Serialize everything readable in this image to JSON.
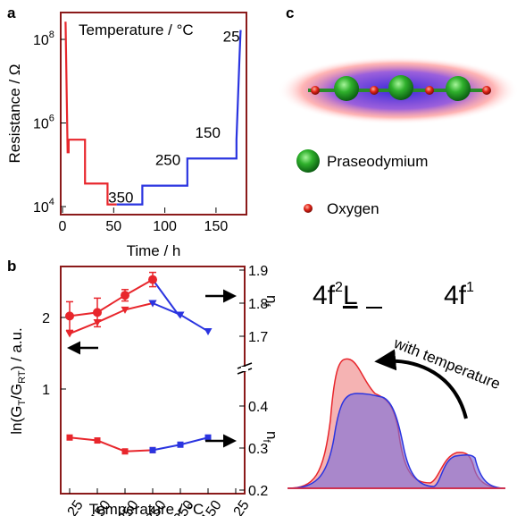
{
  "panel_labels": {
    "a": "a",
    "b": "b",
    "c": "c"
  },
  "colors": {
    "red": "#e8262c",
    "blue": "#2a34e0",
    "black": "#000000",
    "frame_red": "#8b1a1a"
  },
  "chart_data": [
    {
      "id": "a",
      "type": "line",
      "title": "",
      "xlabel": "Time / h",
      "ylabel": "Resistance / Ω",
      "annotation_header": "Temperature / °C",
      "xlim": [
        0,
        178
      ],
      "ylim_log10": [
        3.85,
        8.6
      ],
      "y_scale": "log",
      "xticks": [
        "0",
        "50",
        "100",
        "150"
      ],
      "xtick_values": [
        0,
        50,
        100,
        150
      ],
      "yticks": [
        "10",
        "10",
        "10",
        "10"
      ],
      "ytick_exponents": [
        "4",
        "6",
        "8",
        ""
      ],
      "ytick_values": [
        4,
        6,
        8
      ],
      "step_labels": [
        "350",
        "250",
        "150",
        "25"
      ],
      "step_label_positions": [
        [
          57,
          4.1
        ],
        [
          103,
          5.0
        ],
        [
          142,
          5.65
        ],
        [
          165,
          7.95
        ]
      ],
      "series": [
        {
          "name": "",
          "color": "red",
          "x": [
            2,
            3,
            5,
            6,
            6,
            22,
            22,
            44,
            44,
            53
          ],
          "y": [
            8.4,
            8.4,
            5.3,
            5.3,
            5.6,
            5.6,
            4.55,
            4.55,
            4.05,
            4.05
          ]
        },
        {
          "name": "",
          "color": "blue",
          "x": [
            53,
            78,
            78,
            122,
            122,
            170,
            170,
            173,
            174,
            175
          ],
          "y": [
            4.05,
            4.05,
            4.5,
            4.5,
            5.15,
            5.15,
            5.6,
            7.6,
            8.2,
            8.2
          ]
        }
      ]
    },
    {
      "id": "b",
      "type": "line",
      "title": "",
      "xlabel": "Temperature / °C",
      "ylabel": "ln(GT/GRT) / a.u.",
      "ylabel_parts": {
        "pre": "ln(G",
        "sub1": "T",
        "mid": "/G",
        "sub2": "RT",
        "post": ") / a.u."
      },
      "categories": [
        "25",
        "150",
        "250",
        "350",
        "250",
        "150",
        "25"
      ],
      "left_yticks": [
        "1",
        "2"
      ],
      "left_ylim": [
        0.25,
        2.75
      ],
      "right_yticks_upper": [
        "1.9",
        "1.8",
        "1.7"
      ],
      "right_yticks_lower": [
        "0.4",
        "0.3",
        "0.2"
      ],
      "right_label_upper": "n",
      "right_label_upper_sub": "f",
      "right_label_lower": "n",
      "right_label_lower_sub": "f",
      "series": [
        {
          "name": "",
          "axis": "left",
          "marker": "circle",
          "errorbars": true,
          "heating": [
            2.02,
            2.07,
            2.31,
            2.53
          ],
          "cooling": [
            2.53,
            2.0
          ],
          "errors": [
            0.2,
            0.2,
            0.08,
            0.1,
            0.2
          ]
        },
        {
          "name": "",
          "axis": "right_upper",
          "marker": "triangle",
          "heating": [
            1.708,
            1.742,
            1.78,
            1.8
          ],
          "cooling": [
            1.8,
            1.765,
            1.715
          ]
        },
        {
          "name": "",
          "axis": "right_lower",
          "marker": "square",
          "heating": [
            0.325,
            0.318,
            0.292,
            0.295
          ],
          "cooling": [
            0.295,
            0.308,
            0.325
          ]
        }
      ]
    }
  ],
  "panel_c": {
    "legend": [
      {
        "label": "Praseodymium",
        "color": "green"
      },
      {
        "label": "Oxygen",
        "color": "red"
      }
    ],
    "config_left": {
      "text": "4f",
      "sup": "2",
      "underline": "L"
    },
    "config_right": {
      "text": "4f",
      "sup": "1"
    },
    "arrow_label": "with temperature"
  }
}
